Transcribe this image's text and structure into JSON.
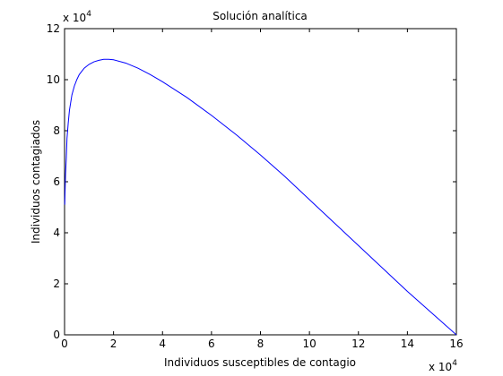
{
  "chart_data": {
    "type": "line",
    "title": "Solución analítica",
    "xlabel": "Individuos susceptibles de contagio",
    "ylabel": "Individuos contagiados",
    "x_multiplier": "x 10",
    "x_multiplier_exp": "4",
    "y_multiplier": "x 10",
    "y_multiplier_exp": "4",
    "xlim": [
      0,
      16
    ],
    "ylim": [
      0,
      12
    ],
    "x_ticks": [
      "0",
      "2",
      "4",
      "6",
      "8",
      "10",
      "12",
      "14",
      "16"
    ],
    "y_ticks": [
      "0",
      "2",
      "4",
      "6",
      "8",
      "10",
      "12"
    ],
    "grid": false,
    "series": [
      {
        "color": "#0000ff",
        "x": [
          0.008,
          0.02,
          0.04,
          0.07,
          0.1,
          0.15,
          0.2,
          0.3,
          0.4,
          0.5,
          0.6,
          0.8,
          1.0,
          1.2,
          1.4,
          1.6,
          1.8,
          2.0,
          2.5,
          3.0,
          3.5,
          4.0,
          5.0,
          6.0,
          7.0,
          8.0,
          9.0,
          10.0,
          11.0,
          12.0,
          13.0,
          14.0,
          15.0,
          16.0
        ],
        "y": [
          5.1,
          5.6,
          6.3,
          6.9,
          7.7,
          8.3,
          8.8,
          9.4,
          9.75,
          10.0,
          10.2,
          10.45,
          10.6,
          10.7,
          10.76,
          10.8,
          10.8,
          10.78,
          10.65,
          10.45,
          10.2,
          9.92,
          9.3,
          8.6,
          7.85,
          7.05,
          6.2,
          5.3,
          4.4,
          3.5,
          2.6,
          1.7,
          0.85,
          0.0
        ]
      }
    ]
  }
}
